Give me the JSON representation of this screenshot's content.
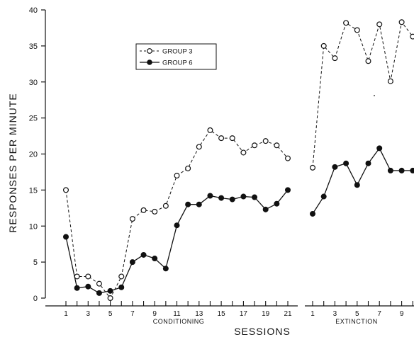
{
  "chart_data": {
    "type": "line",
    "title": "",
    "xlabel": "SESSIONS",
    "ylabel": "RESPONSES PER MINUTE",
    "ylim": [
      0,
      40
    ],
    "y_ticks": [
      "0",
      "5",
      "10",
      "15",
      "20",
      "25",
      "30",
      "35",
      "40"
    ],
    "grid": false,
    "legend_position": "upper-left",
    "panels": [
      {
        "label": "CONDITIONING",
        "x": [
          1,
          2,
          3,
          4,
          5,
          6,
          7,
          8,
          9,
          10,
          11,
          12,
          13,
          14,
          15,
          16,
          17,
          18,
          19,
          20,
          21
        ],
        "x_tick_labels": [
          "1",
          "3",
          "5",
          "7",
          "9",
          "11",
          "13",
          "15",
          "17",
          "19",
          "21"
        ],
        "series": [
          {
            "name": "GROUP 3",
            "values": [
              15,
              3,
              3,
              2,
              0,
              3,
              11,
              12.2,
              12,
              12.8,
              17,
              18,
              21,
              23.3,
              22.2,
              22.2,
              20.2,
              21.2,
              21.8,
              21.2,
              19.4
            ]
          },
          {
            "name": "GROUP 6",
            "values": [
              8.5,
              1.4,
              1.6,
              0.7,
              1,
              1.5,
              5,
              6,
              5.5,
              4.1,
              10.1,
              13,
              13,
              14.2,
              13.9,
              13.7,
              14.1,
              14,
              12.3,
              13.1,
              15
            ]
          }
        ]
      },
      {
        "label": "EXTINCTION",
        "x": [
          1,
          2,
          3,
          4,
          5,
          6,
          7,
          8,
          9,
          10
        ],
        "x_tick_labels": [
          "1",
          "3",
          "5",
          "7",
          "9"
        ],
        "series": [
          {
            "name": "GROUP 3",
            "values": [
              18.1,
              35,
              33.3,
              38.2,
              37.2,
              32.9,
              38,
              30.1,
              38.3,
              36.3
            ]
          },
          {
            "name": "GROUP 6",
            "values": [
              11.7,
              14.1,
              18.2,
              18.7,
              15.7,
              18.7,
              20.8,
              17.7,
              17.7,
              17.7
            ]
          }
        ]
      }
    ],
    "colors": {
      "ink": "#111111",
      "background": "#ffffff"
    }
  }
}
